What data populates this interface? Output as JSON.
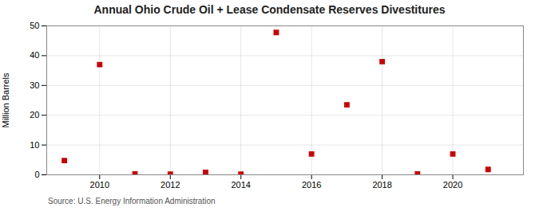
{
  "chart_data": {
    "type": "scatter",
    "title": "Annual Ohio Crude Oil + Lease Condensate Reserves Divestitures",
    "ylabel": "Million Barrels",
    "source": "Source: U.S. Energy Information Administration",
    "x": [
      2009,
      2010,
      2011,
      2012,
      2013,
      2014,
      2015,
      2016,
      2017,
      2018,
      2019,
      2020,
      2021
    ],
    "values": [
      4.8,
      37.0,
      0.3,
      0.2,
      0.8,
      0.2,
      47.8,
      7.0,
      23.5,
      38.0,
      0.3,
      7.0,
      1.8
    ],
    "color": "#cc0000",
    "marker": "square",
    "xlim": [
      2008.5,
      2022.0
    ],
    "xticks": [
      2010,
      2012,
      2014,
      2016,
      2018,
      2020
    ],
    "ylim": [
      0,
      50
    ],
    "yticks": [
      0,
      10,
      20,
      30,
      40,
      50
    ],
    "grid": true
  }
}
